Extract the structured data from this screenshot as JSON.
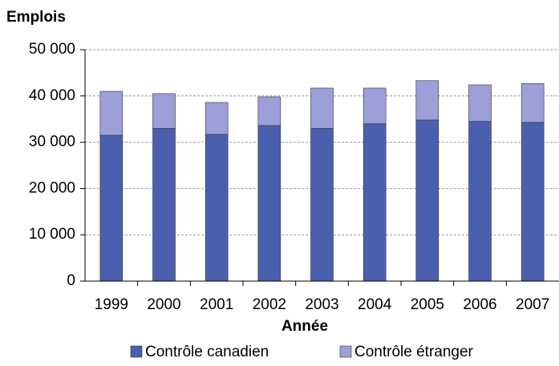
{
  "chart_data": {
    "type": "stacked_bar",
    "title": "Emplois",
    "x_label": "Année",
    "categories": [
      "1999",
      "2000",
      "2001",
      "2002",
      "2003",
      "2004",
      "2005",
      "2006",
      "2007"
    ],
    "series": [
      {
        "name": "Contrôle canadien",
        "color": "#4a5fae",
        "values": [
          31500,
          33000,
          31700,
          33600,
          33000,
          34000,
          34800,
          34500,
          34300
        ]
      },
      {
        "name": "Contrôle étranger",
        "color": "#9c9fd8",
        "values": [
          9500,
          7500,
          6900,
          6200,
          8700,
          7700,
          8500,
          7900,
          8400
        ]
      }
    ],
    "ylim": [
      0,
      50000
    ],
    "yticks": [
      {
        "value": 0,
        "label": "0"
      },
      {
        "value": 10000,
        "label": "10 000"
      },
      {
        "value": 20000,
        "label": "20 000"
      },
      {
        "value": 30000,
        "label": "30 000"
      },
      {
        "value": 40000,
        "label": "40 000"
      },
      {
        "value": 50000,
        "label": "50 000"
      }
    ],
    "grid": true,
    "legend": "bottom"
  }
}
